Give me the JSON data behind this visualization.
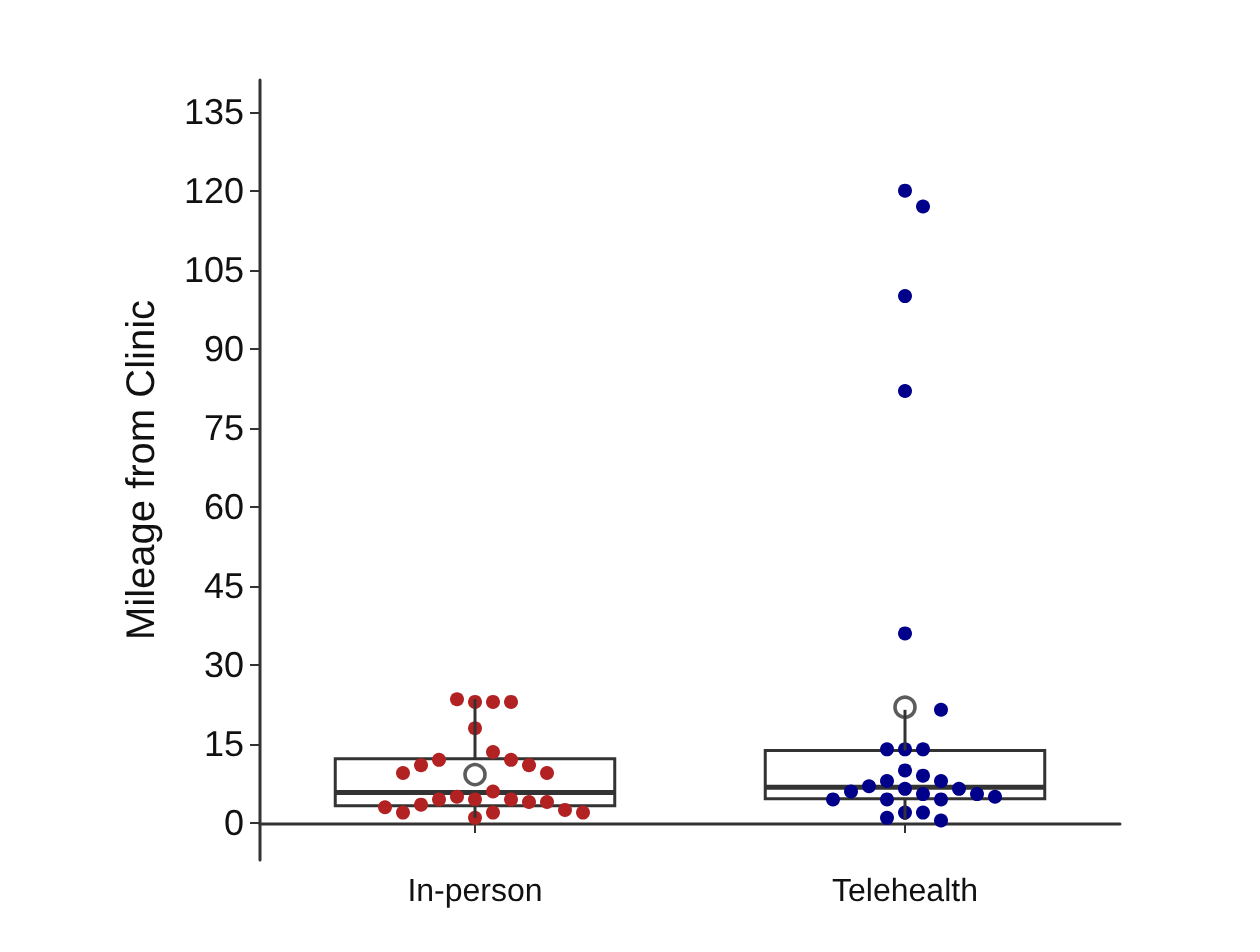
{
  "chart_data": {
    "type": "box",
    "ylabel": "Mileage from Clinic",
    "categories": [
      "In-person",
      "Telehealth"
    ],
    "ylim": [
      -7,
      141
    ],
    "yticks": [
      0,
      15,
      30,
      45,
      60,
      75,
      90,
      105,
      120,
      135
    ],
    "grid": false,
    "boxes": [
      {
        "low": 1.0,
        "q1": 3.3,
        "median": 5.8,
        "q3": 12.2,
        "high": 23.5,
        "mean": 9.2
      },
      {
        "low": 0.6,
        "q1": 4.6,
        "median": 6.8,
        "q3": 13.8,
        "high": 21.5,
        "mean": 22
      }
    ],
    "series": [
      {
        "type": "scatter",
        "color": "#b22222",
        "x": [
          "In-person",
          "In-person",
          "In-person",
          "In-person",
          "In-person",
          "In-person",
          "In-person",
          "In-person",
          "In-person",
          "In-person",
          "In-person",
          "In-person",
          "In-person",
          "In-person",
          "In-person",
          "In-person",
          "In-person",
          "In-person",
          "In-person",
          "In-person",
          "In-person",
          "In-person",
          "In-person",
          "In-person",
          "In-person",
          "In-person"
        ],
        "values": [
          23,
          23,
          23.5,
          23,
          18,
          13.5,
          12,
          12,
          11,
          11,
          9.5,
          9.5,
          6,
          4.5,
          5,
          4.5,
          4.5,
          4,
          3.5,
          4,
          2,
          2,
          2.5,
          3,
          2,
          1
        ]
      },
      {
        "type": "scatter",
        "color": "#00008b",
        "x": [
          "Telehealth",
          "Telehealth",
          "Telehealth",
          "Telehealth",
          "Telehealth",
          "Telehealth",
          "Telehealth",
          "Telehealth",
          "Telehealth",
          "Telehealth",
          "Telehealth",
          "Telehealth",
          "Telehealth",
          "Telehealth",
          "Telehealth",
          "Telehealth",
          "Telehealth",
          "Telehealth",
          "Telehealth",
          "Telehealth",
          "Telehealth",
          "Telehealth",
          "Telehealth",
          "Telehealth",
          "Telehealth",
          "Telehealth",
          "Telehealth"
        ],
        "values": [
          120,
          117,
          100,
          82,
          36,
          21.5,
          14,
          14,
          14,
          10,
          9,
          8,
          6.5,
          8,
          7,
          6.5,
          5.5,
          6,
          5.5,
          4.5,
          4.5,
          4.5,
          5,
          2,
          2,
          1,
          0.5
        ]
      }
    ]
  }
}
